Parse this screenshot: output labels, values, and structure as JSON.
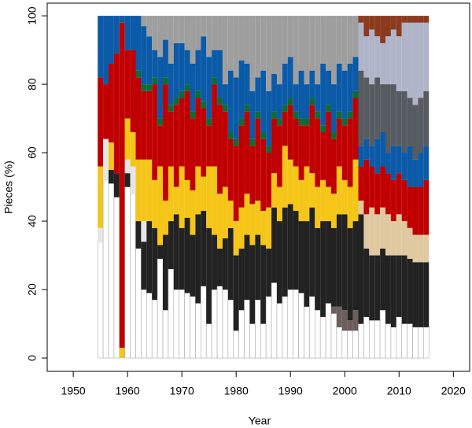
{
  "chart_data": {
    "type": "stacked_bar",
    "x_label": "Year",
    "y_label": "Pieces (%)",
    "x": [
      1955,
      1956,
      1957,
      1958,
      1959,
      1960,
      1961,
      1962,
      1963,
      1964,
      1965,
      1966,
      1967,
      1968,
      1969,
      1970,
      1971,
      1972,
      1973,
      1974,
      1975,
      1976,
      1977,
      1978,
      1979,
      1980,
      1981,
      1982,
      1983,
      1984,
      1985,
      1986,
      1987,
      1988,
      1989,
      1990,
      1991,
      1992,
      1993,
      1994,
      1995,
      1996,
      1997,
      1998,
      1999,
      2000,
      2001,
      2002,
      2003,
      2004,
      2005,
      2006,
      2007,
      2008,
      2009,
      2010,
      2011,
      2012,
      2013,
      2014,
      2015
    ],
    "xlim": [
      1945.2,
      2023.0
    ],
    "xticks": [
      1950,
      1960,
      1970,
      1980,
      1990,
      2000,
      2010,
      2020
    ],
    "ylim": [
      -3.9,
      103.7
    ],
    "yticks": [
      0,
      20,
      40,
      60,
      80,
      100
    ],
    "series": [
      {
        "color": "#ffffff",
        "values": [
          34,
          52,
          51,
          47,
          0,
          50,
          48,
          32,
          20,
          19,
          17,
          29,
          14,
          26,
          20,
          20,
          19,
          18,
          16,
          21,
          10,
          20,
          21,
          20,
          17,
          8,
          14,
          17,
          10,
          17,
          10,
          18,
          22,
          16,
          18,
          20,
          20,
          19,
          15,
          18,
          14,
          12,
          16,
          13,
          9,
          8,
          8,
          8,
          10,
          12,
          11,
          11,
          14,
          10,
          9,
          12,
          10,
          10,
          9,
          9,
          9
        ]
      },
      {
        "color": "#6b5e5b",
        "values": [
          0,
          0,
          0,
          0,
          0,
          0,
          0,
          0,
          0,
          0,
          0,
          0,
          0,
          0,
          0,
          0,
          0,
          0,
          0,
          0,
          0,
          0,
          0,
          0,
          0,
          0,
          0,
          0,
          0,
          0,
          0,
          0,
          0,
          0,
          0,
          0,
          0,
          0,
          0,
          0,
          0,
          0,
          0,
          2,
          6,
          6,
          3,
          6,
          0,
          0,
          0,
          0,
          0,
          0,
          0,
          0,
          0,
          0,
          0,
          0,
          0
        ]
      },
      {
        "color": "#222222",
        "values": [
          0,
          0,
          4,
          7,
          0,
          4,
          0,
          8,
          14,
          21,
          21,
          4,
          22,
          14,
          22,
          18,
          22,
          18,
          26,
          22,
          28,
          16,
          11,
          15,
          21,
          22,
          18,
          19,
          23,
          19,
          23,
          14,
          22,
          24,
          26,
          25,
          23,
          21,
          25,
          26,
          24,
          28,
          24,
          23,
          27,
          28,
          27,
          26,
          32,
          20,
          19,
          19,
          18,
          20,
          21,
          18,
          20,
          19,
          19,
          19,
          19
        ]
      },
      {
        "color": "#e6e6e6",
        "values": [
          4,
          12,
          0,
          0,
          0,
          4,
          8,
          0,
          6,
          0,
          0,
          0,
          0,
          0,
          0,
          0,
          0,
          0,
          0,
          0,
          0,
          0,
          0,
          0,
          0,
          0,
          0,
          0,
          0,
          0,
          0,
          0,
          0,
          0,
          0,
          0,
          0,
          0,
          0,
          0,
          0,
          0,
          0,
          0,
          0,
          0,
          0,
          0,
          0,
          0,
          0,
          0,
          0,
          0,
          0,
          0,
          0,
          0,
          0,
          0,
          0
        ]
      },
      {
        "color": "#e0c9a0",
        "values": [
          0,
          0,
          0,
          0,
          0,
          0,
          0,
          0,
          0,
          0,
          0,
          0,
          0,
          0,
          0,
          0,
          0,
          0,
          0,
          0,
          0,
          0,
          0,
          0,
          0,
          0,
          0,
          0,
          0,
          0,
          0,
          0,
          0,
          0,
          0,
          0,
          0,
          0,
          0,
          0,
          0,
          0,
          0,
          0,
          0,
          0,
          0,
          0,
          4,
          10,
          14,
          12,
          12,
          12,
          10,
          12,
          10,
          9,
          8,
          8,
          8
        ]
      },
      {
        "color": "#f5c518",
        "values": [
          18,
          0,
          8,
          0,
          3,
          12,
          10,
          18,
          18,
          18,
          14,
          23,
          10,
          16,
          8,
          18,
          11,
          13,
          14,
          10,
          18,
          20,
          16,
          15,
          8,
          10,
          12,
          12,
          12,
          10,
          10,
          12,
          10,
          10,
          18,
          13,
          13,
          12,
          16,
          10,
          12,
          12,
          10,
          10,
          14,
          10,
          12,
          18,
          0,
          0,
          0,
          0,
          0,
          0,
          0,
          0,
          0,
          0,
          0,
          0,
          0
        ]
      },
      {
        "color": "#c00000",
        "values": [
          26,
          16,
          23,
          35,
          95,
          20,
          24,
          24,
          20,
          20,
          28,
          12,
          34,
          16,
          24,
          20,
          26,
          21,
          20,
          20,
          12,
          24,
          26,
          22,
          18,
          22,
          24,
          24,
          17,
          24,
          21,
          16,
          16,
          18,
          10,
          16,
          14,
          16,
          12,
          20,
          20,
          14,
          22,
          16,
          14,
          16,
          20,
          18,
          10,
          16,
          12,
          12,
          12,
          12,
          12,
          12,
          12,
          12,
          14,
          14,
          16
        ]
      },
      {
        "color": "#0e6b35",
        "values": [
          0,
          0,
          0,
          0,
          0,
          0,
          0,
          2,
          2,
          2,
          2,
          2,
          2,
          2,
          2,
          2,
          2,
          2,
          2,
          2,
          2,
          2,
          2,
          2,
          2,
          2,
          2,
          2,
          2,
          2,
          2,
          2,
          2,
          2,
          2,
          2,
          2,
          2,
          2,
          2,
          2,
          2,
          2,
          2,
          2,
          2,
          2,
          2,
          0,
          0,
          0,
          0,
          0,
          0,
          0,
          0,
          0,
          0,
          0,
          0,
          0
        ]
      },
      {
        "color": "#0a5aa8",
        "values": [
          18,
          20,
          14,
          11,
          2,
          10,
          10,
          16,
          17,
          14,
          8,
          18,
          11,
          12,
          16,
          14,
          10,
          14,
          12,
          19,
          18,
          8,
          14,
          6,
          18,
          18,
          17,
          12,
          14,
          10,
          18,
          16,
          11,
          10,
          12,
          12,
          8,
          14,
          10,
          8,
          8,
          18,
          10,
          14,
          14,
          14,
          14,
          10,
          6,
          6,
          6,
          10,
          10,
          6,
          10,
          8,
          8,
          12,
          8,
          10,
          10
        ]
      },
      {
        "color": "#555b60",
        "values": [
          0,
          0,
          0,
          0,
          0,
          0,
          0,
          0,
          0,
          0,
          0,
          0,
          0,
          0,
          0,
          0,
          0,
          0,
          0,
          0,
          0,
          0,
          0,
          0,
          0,
          0,
          0,
          0,
          0,
          0,
          0,
          0,
          0,
          0,
          0,
          0,
          0,
          0,
          0,
          0,
          0,
          0,
          0,
          0,
          0,
          0,
          0,
          0,
          22,
          18,
          18,
          18,
          14,
          20,
          18,
          16,
          18,
          14,
          16,
          16,
          16
        ]
      },
      {
        "color": "#b0b4c8",
        "values": [
          0,
          0,
          0,
          0,
          0,
          0,
          0,
          0,
          0,
          0,
          0,
          0,
          0,
          0,
          0,
          0,
          0,
          0,
          0,
          0,
          0,
          0,
          0,
          0,
          0,
          0,
          0,
          0,
          0,
          0,
          0,
          0,
          0,
          0,
          0,
          0,
          0,
          0,
          0,
          0,
          0,
          0,
          0,
          0,
          0,
          0,
          0,
          0,
          14,
          12,
          16,
          12,
          12,
          14,
          16,
          16,
          20,
          22,
          24,
          22,
          20
        ]
      },
      {
        "color": "#8b3a1e",
        "values": [
          0,
          0,
          0,
          0,
          0,
          0,
          0,
          0,
          0,
          0,
          0,
          0,
          0,
          0,
          0,
          0,
          0,
          0,
          0,
          0,
          0,
          0,
          0,
          0,
          0,
          0,
          0,
          0,
          0,
          0,
          0,
          0,
          0,
          0,
          0,
          0,
          0,
          0,
          0,
          0,
          0,
          0,
          0,
          0,
          0,
          0,
          0,
          0,
          2,
          6,
          4,
          6,
          8,
          6,
          4,
          6,
          2,
          2,
          2,
          2,
          2
        ]
      },
      {
        "color": "#9e9e9e",
        "values": [
          0,
          0,
          0,
          0,
          0,
          0,
          0,
          0,
          3,
          6,
          10,
          12,
          7,
          14,
          8,
          8,
          10,
          14,
          10,
          6,
          12,
          10,
          10,
          20,
          16,
          18,
          13,
          14,
          22,
          18,
          16,
          22,
          17,
          20,
          14,
          12,
          20,
          16,
          20,
          16,
          20,
          14,
          16,
          20,
          14,
          16,
          14,
          12,
          0,
          0,
          0,
          0,
          0,
          0,
          0,
          0,
          0,
          0,
          0,
          0,
          0
        ]
      }
    ]
  }
}
